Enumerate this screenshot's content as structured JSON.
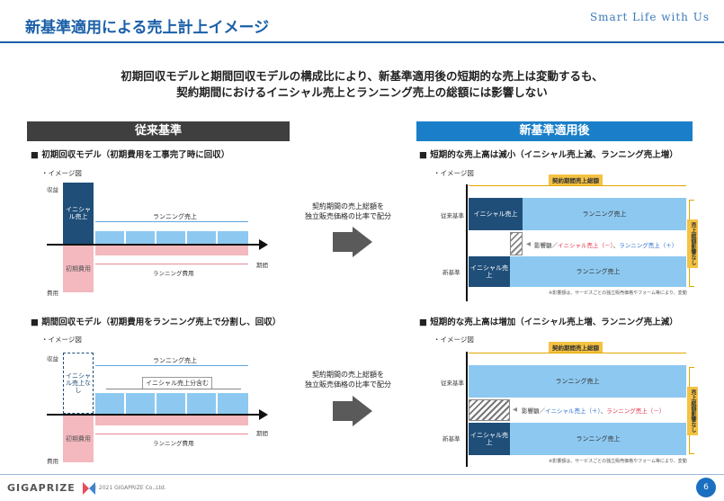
{
  "header": {
    "title": "新基準適用による売上計上イメージ",
    "brand": "Smart Life with Us"
  },
  "summary": {
    "line1": "初期回収モデルと期間回収モデルの構成比により、新基準適用後の短期的な売上は変動するも、",
    "line2": "契約期間におけるイニシャル売上とランニング売上の総額には影響しない"
  },
  "left": {
    "header": "従来基準",
    "model1": {
      "title": "■ 初期回収モデル（初期費用を工事完了時に回収）",
      "image_label": "・イメージ図",
      "revenue": "収益",
      "cost": "費用",
      "initial_sales": "イニシャル売上",
      "running_sales": "ランニング売上",
      "initial_cost": "初期費用",
      "running_cost": "ランニング費用",
      "period": "期間"
    },
    "model2": {
      "title": "■ 期間回収モデル（初期費用をランニング売上で分割し、回収）",
      "image_label": "・イメージ図",
      "revenue": "収益",
      "cost": "費用",
      "no_initial": "イニシャル売上なし",
      "running_sales": "ランニング売上",
      "includes_initial": "イニシャル売上分含む",
      "initial_cost": "初期費用",
      "running_cost": "ランニング費用",
      "period": "期間"
    }
  },
  "middle": {
    "text1_line1": "契約期間の売上総額を",
    "text1_line2": "独立販売価格の比率で配分",
    "text2_line1": "契約期間の売上総額を",
    "text2_line2": "独立販売価格の比率で配分"
  },
  "right": {
    "header": "新基準適用後",
    "case1": {
      "title": "■ 短期的な売上高は減小（イニシャル売上減、ランニング売上増）",
      "image_label": "・イメージ図",
      "contract_total": "契約期間売上総額",
      "old_label": "従来基準",
      "new_label": "新基準",
      "initial_sales": "イニシャル売上",
      "running_sales": "ランニング売上",
      "impact_prefix": "影響額／",
      "impact_a": "イニシャル売上（－）",
      "impact_b": "ランニング売上（＋）",
      "no_impact": "売上総額影響なし",
      "note": "※影響額は、サービスごとの独立販売価格やフォーム等により、変動"
    },
    "case2": {
      "title": "■ 短期的な売上高は増加（イニシャル売上増、ランニング売上減）",
      "image_label": "・イメージ図",
      "contract_total": "契約期間売上総額",
      "old_label": "従来基準",
      "new_label": "新基準",
      "initial_sales": "イニシャル売上",
      "running_sales": "ランニング売上",
      "impact_prefix": "影響額／",
      "impact_a": "イニシャル売上（＋）",
      "impact_b": "ランニング売上（－）",
      "no_impact": "売上総額影響なし",
      "note": "※影響額は、サービスごとの独立販売価格やフォーム等により、変動"
    }
  },
  "footer": {
    "logo": "GIGAPRIZE",
    "copyright": "© 2021 GIGAPRIZE Co.,Ltd.",
    "page": "6"
  },
  "colors": {
    "brand": "#1a5fa8",
    "dark_header": "#3f3f3f",
    "navy": "#1f4e79",
    "sky": "#8dc8f0",
    "pink": "#f4b8bf",
    "gold": "#f5c242",
    "red": "#e0334a",
    "blue": "#2b6fd1"
  }
}
